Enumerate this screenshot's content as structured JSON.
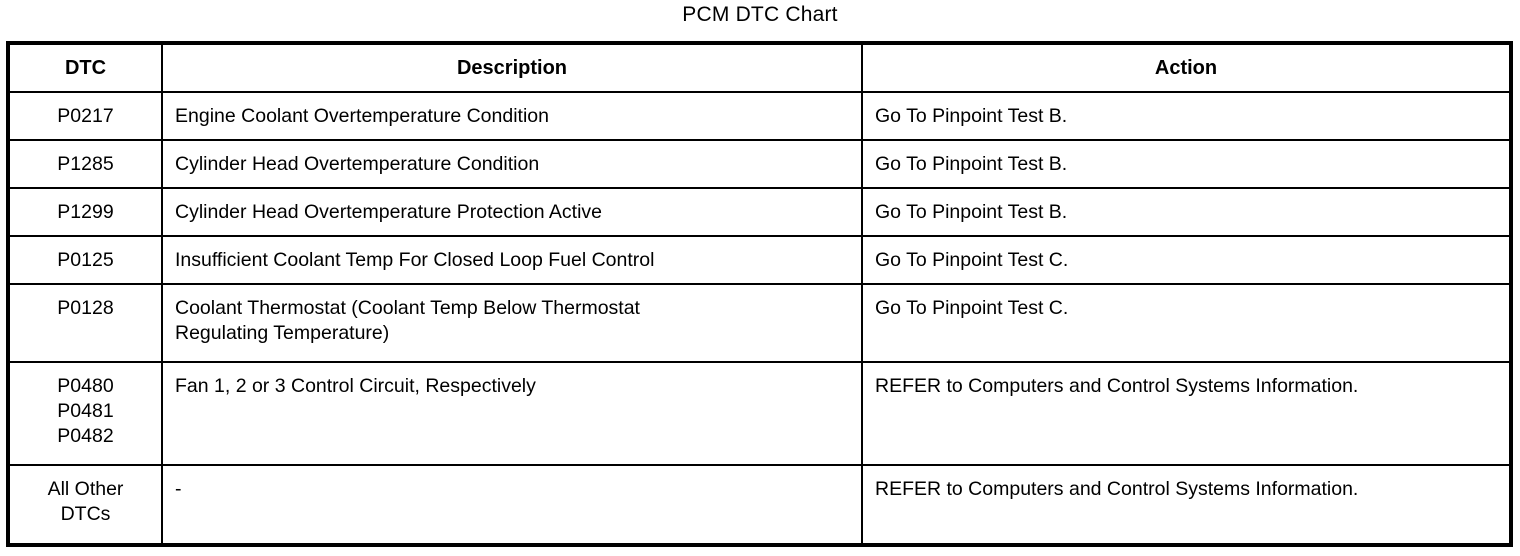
{
  "title": "PCM DTC Chart",
  "table": {
    "headers": [
      "DTC",
      "Description",
      "Action"
    ],
    "rows": [
      {
        "dtc": "P0217",
        "description": "Engine Coolant Overtemperature Condition",
        "action": "Go To Pinpoint Test B."
      },
      {
        "dtc": "P1285",
        "description": "Cylinder Head Overtemperature Condition",
        "action": "Go To Pinpoint Test B."
      },
      {
        "dtc": "P1299",
        "description": "Cylinder Head Overtemperature Protection Active",
        "action": "Go To Pinpoint Test B."
      },
      {
        "dtc": "P0125",
        "description": "Insufficient Coolant Temp For Closed Loop Fuel Control",
        "action": "Go To Pinpoint Test C."
      },
      {
        "dtc": "P0128",
        "description": "Coolant Thermostat (Coolant Temp Below Thermostat\nRegulating Temperature)",
        "action": "Go To Pinpoint Test C."
      },
      {
        "dtc": "P0480\nP0481\nP0482",
        "description": "Fan 1, 2 or 3 Control Circuit, Respectively",
        "action": "REFER to Computers and Control Systems Information."
      },
      {
        "dtc": "All Other\nDTCs",
        "description": "-",
        "action": "REFER to Computers and Control Systems Information."
      }
    ]
  },
  "colors": {
    "border": "#000000",
    "text": "#000000",
    "background": "#ffffff"
  }
}
